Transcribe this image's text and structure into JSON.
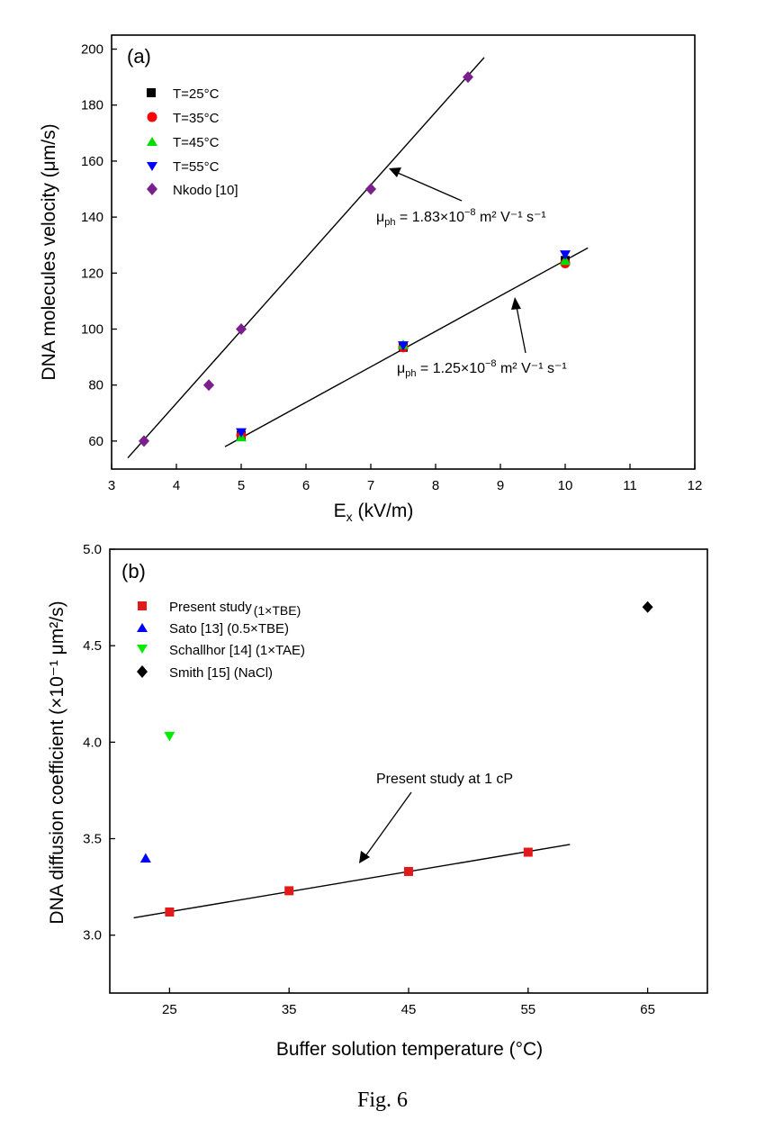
{
  "caption": "Fig. 6",
  "chart_data": [
    {
      "panel_label": "(a)",
      "type": "scatter",
      "xlabel": "E",
      "xlabel_sub": "x",
      "xlabel_unit": " (kV/m)",
      "ylabel": "DNA molecules velocity (μm/s)",
      "xlim": [
        3,
        12
      ],
      "ylim": [
        50,
        205
      ],
      "xticks": [
        3,
        4,
        5,
        6,
        7,
        8,
        9,
        10,
        11,
        12
      ],
      "yticks": [
        60,
        80,
        100,
        120,
        140,
        160,
        180,
        200
      ],
      "grid": false,
      "legend_position": "top-left",
      "series": [
        {
          "name": "T=25°C",
          "marker": "square",
          "color": "#000000",
          "points": [
            [
              5,
              62
            ],
            [
              7.5,
              93.5
            ],
            [
              10,
              124.5
            ]
          ]
        },
        {
          "name": "T=35°C",
          "marker": "circle",
          "color": "#ff0000",
          "points": [
            [
              5,
              62
            ],
            [
              7.5,
              93.5
            ],
            [
              10,
              123.5
            ]
          ]
        },
        {
          "name": "T=45°C",
          "marker": "triangle-up",
          "color": "#00dd00",
          "points": [
            [
              5,
              61.5
            ],
            [
              7.5,
              94.5
            ],
            [
              10,
              124.5
            ]
          ]
        },
        {
          "name": "T=55°C",
          "marker": "triangle-down",
          "color": "#0000ff",
          "points": [
            [
              5,
              63
            ],
            [
              7.5,
              94
            ],
            [
              10,
              126.5
            ]
          ]
        },
        {
          "name": "Nkodo [10]",
          "marker": "diamond",
          "color": "#7b1f8c",
          "points": [
            [
              3.5,
              60
            ],
            [
              4.5,
              80
            ],
            [
              5,
              100
            ],
            [
              7,
              150
            ],
            [
              8.5,
              190
            ]
          ]
        }
      ],
      "fit_lines": [
        {
          "x": [
            3.25,
            8.75
          ],
          "y": [
            54,
            197
          ]
        },
        {
          "x": [
            4.75,
            10.35
          ],
          "y": [
            58,
            129
          ]
        }
      ],
      "annotations": [
        {
          "text_pre": "μ",
          "sub": "ph",
          "text_mid": " = 1.83×10",
          "sup": "−8",
          "text_post": " m² V⁻¹ s⁻¹"
        },
        {
          "text_pre": "μ",
          "sub": "ph",
          "text_mid": " = 1.25×10",
          "sup": "−8",
          "text_post": " m² V⁻¹ s⁻¹"
        }
      ]
    },
    {
      "panel_label": "(b)",
      "type": "scatter",
      "xlabel": "Buffer solution temperature (°C)",
      "ylabel": "DNA diffusion coefficient (×10⁻¹ μm²/s)",
      "xlim": [
        20,
        70
      ],
      "ylim": [
        2.7,
        5.0
      ],
      "xticks": [
        25,
        35,
        45,
        55,
        65
      ],
      "yticks": [
        3.0,
        3.5,
        4.0,
        4.5,
        5.0
      ],
      "ytick_labels": [
        "3.0",
        "3.5",
        "4.0",
        "4.5",
        "5.0"
      ],
      "grid": false,
      "legend_position": "top-left",
      "series": [
        {
          "name": "Present study",
          "name_suffix": "(1×TBE)",
          "marker": "square",
          "color": "#e31a1c",
          "points": [
            [
              25,
              3.12
            ],
            [
              35,
              3.23
            ],
            [
              45,
              3.33
            ],
            [
              55,
              3.43
            ]
          ]
        },
        {
          "name": "Sato [13] (0.5×TBE)",
          "marker": "triangle-up",
          "color": "#0000ff",
          "points": [
            [
              23,
              3.4
            ]
          ]
        },
        {
          "name": "Schallhor [14] (1×TAE)",
          "marker": "triangle-down",
          "color": "#00ee00",
          "points": [
            [
              25,
              4.03
            ]
          ]
        },
        {
          "name": "Smith [15] (NaCl)",
          "marker": "diamond",
          "color": "#000000",
          "points": [
            [
              65,
              4.7
            ]
          ]
        }
      ],
      "fit_lines": [
        {
          "x": [
            22,
            58.5
          ],
          "y": [
            3.09,
            3.47
          ]
        }
      ],
      "annotations": [
        {
          "text": "Present study at 1 cP"
        }
      ]
    }
  ]
}
